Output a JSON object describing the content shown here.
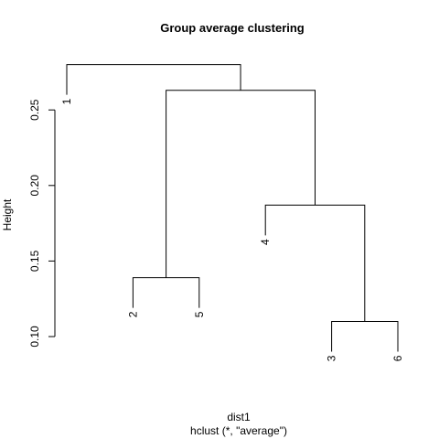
{
  "chart_data": {
    "type": "dendrogram",
    "title": "Group average clustering",
    "xlabel": "dist1",
    "sub": "hclust (*, \"average\")",
    "ylabel": "Height",
    "yticks": [
      0.1,
      0.15,
      0.2,
      0.25
    ],
    "ytick_labels": [
      "0.10",
      "0.15",
      "0.20",
      "0.25"
    ],
    "leaf_order": [
      "1",
      "2",
      "5",
      "4",
      "3",
      "6"
    ],
    "merges": [
      {
        "id": "m1",
        "left": "3",
        "right": "6",
        "height": 0.11
      },
      {
        "id": "m2",
        "left": "2",
        "right": "5",
        "height": 0.139
      },
      {
        "id": "m3",
        "left": "4",
        "right": "m1",
        "height": 0.187
      },
      {
        "id": "m4",
        "left": "m2",
        "right": "m3",
        "height": 0.263
      },
      {
        "id": "m5",
        "left": "1",
        "right": "m4",
        "height": 0.28
      }
    ]
  }
}
